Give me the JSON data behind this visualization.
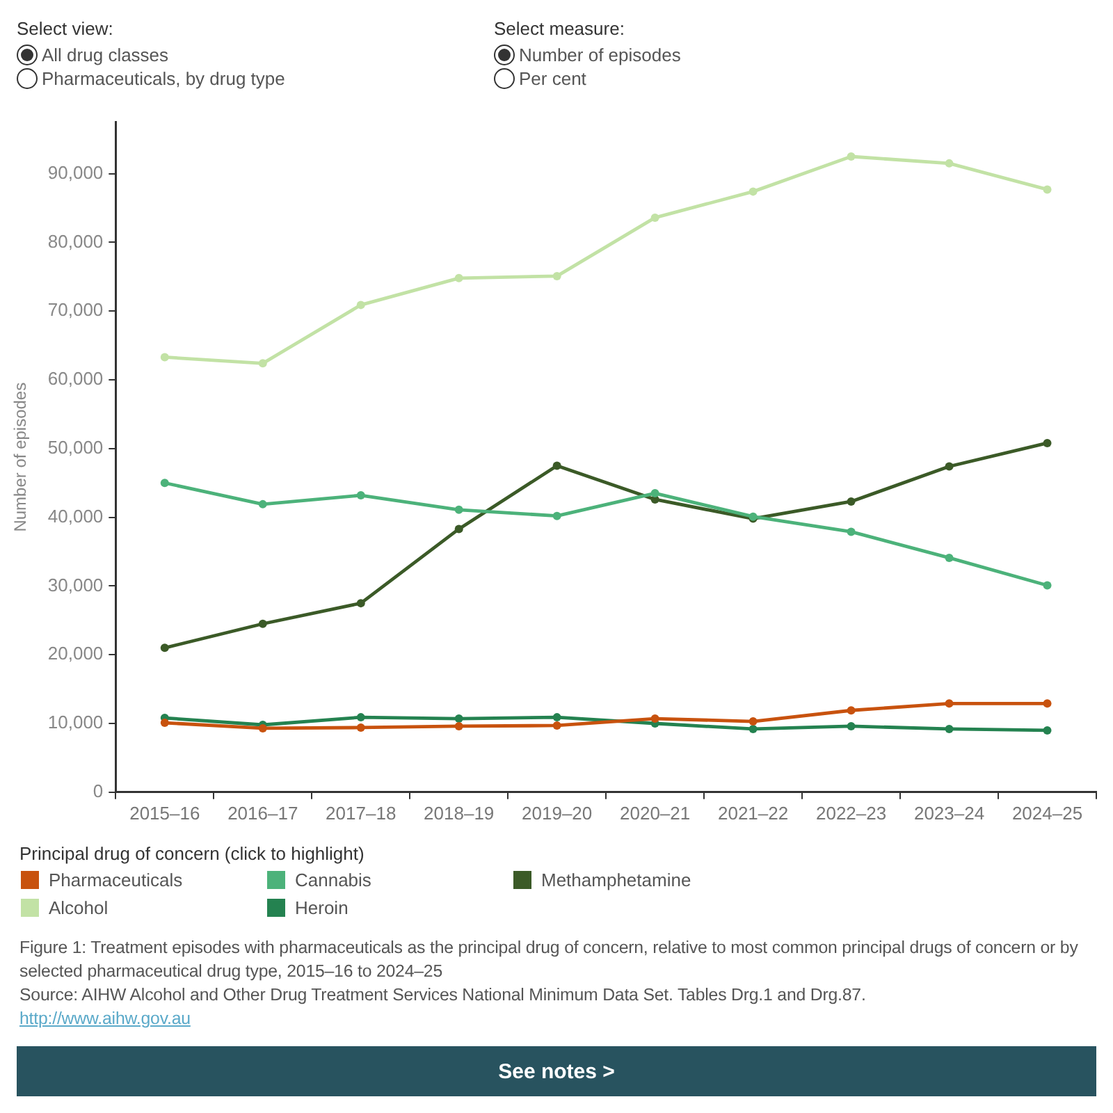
{
  "chart_data": {
    "type": "line",
    "ylabel": "Number of episodes",
    "legend_title": "Principal drug of concern (click to highlight)",
    "legend": "bottom",
    "marker": "circle",
    "categories": [
      "2015–16",
      "2016–17",
      "2017–18",
      "2018–19",
      "2019–20",
      "2020–21",
      "2021–22",
      "2022–23",
      "2023–24",
      "2024–25"
    ],
    "series": [
      {
        "name": "Pharmaceuticals",
        "color": "#c8520e",
        "values": [
          10100,
          9300,
          9400,
          9600,
          9700,
          10700,
          10300,
          11900,
          12900,
          12900
        ]
      },
      {
        "name": "Cannabis",
        "color": "#4cb27a",
        "values": [
          45000,
          41900,
          43200,
          41100,
          40200,
          43500,
          40100,
          37900,
          34100,
          30100
        ]
      },
      {
        "name": "Methamphetamine",
        "color": "#3b5a27",
        "values": [
          21000,
          24500,
          27500,
          38300,
          47500,
          42600,
          39800,
          42300,
          47400,
          50800
        ]
      },
      {
        "name": "Alcohol",
        "color": "#c2e2a5",
        "values": [
          63300,
          62400,
          70900,
          74800,
          75100,
          83600,
          87400,
          92500,
          91500,
          87700
        ]
      },
      {
        "name": "Heroin",
        "color": "#248250",
        "values": [
          10800,
          9800,
          10900,
          10700,
          10900,
          10000,
          9200,
          9600,
          9200,
          9000
        ]
      }
    ],
    "ylim": [
      0,
      97500
    ],
    "yticks": [
      0,
      {
        "value": 10000,
        "label": "10,000"
      },
      {
        "value": 20000,
        "label": "20,000"
      },
      {
        "value": 30000,
        "label": "30,000"
      },
      {
        "value": 40000,
        "label": "40,000"
      },
      {
        "value": 50000,
        "label": "50,000"
      },
      {
        "value": 60000,
        "label": "60,000"
      },
      {
        "value": 70000,
        "label": "70,000"
      },
      {
        "value": 80000,
        "label": "80,000"
      },
      {
        "value": 90000,
        "label": "90,000"
      }
    ],
    "annotations": [
      "Select view:",
      "All drug classes",
      "Pharmaceuticals, by drug type",
      "Select measure:",
      "Number of episodes",
      "Per cent",
      "Figure 1: Treatment episodes with pharmaceuticals as the principal drug of concern, relative to most common principal drugs of concern or by selected pharmaceutical drug type, 2015–16 to 2024–25",
      "Source: AIHW Alcohol and Other Drug Treatment Services National Minimum Data Set. Tables Drg.1 and Drg.87.",
      "http://www.aihw.gov.au",
      "See notes >"
    ]
  }
}
